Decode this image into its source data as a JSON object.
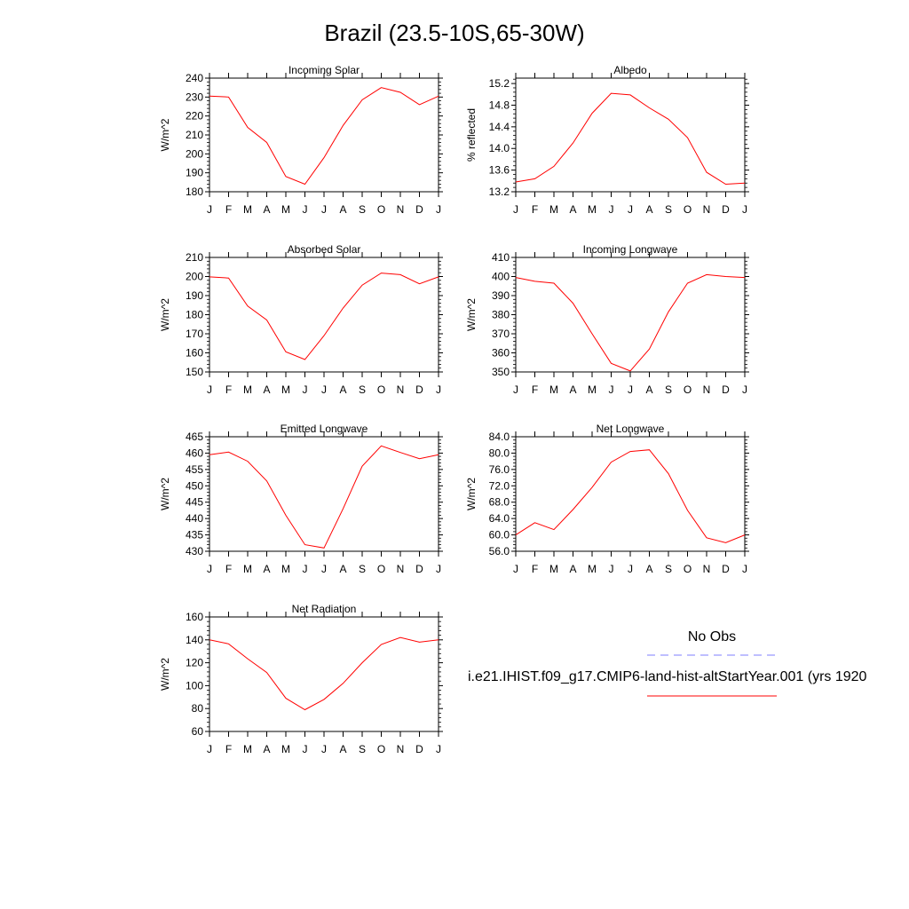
{
  "figure": {
    "title": "Brazil (23.5-10S,65-30W)"
  },
  "months": [
    "J",
    "F",
    "M",
    "A",
    "M",
    "J",
    "J",
    "A",
    "S",
    "O",
    "N",
    "D",
    "J"
  ],
  "legend": {
    "obs_label": "No Obs",
    "obs_color": "#7f7fff",
    "model_label": "i.e21.IHIST.f09_g17.CMIP6-land-hist-altStartYear.001 (yrs 1920",
    "model_color": "#ff0000"
  },
  "chart_data": [
    {
      "type": "line",
      "title": "Incoming Solar",
      "ylabel": "W/m^2",
      "ylim": [
        180,
        240
      ],
      "yticks": [
        "180",
        "190",
        "200",
        "210",
        "220",
        "230",
        "240"
      ],
      "tick_values": [
        180,
        190,
        200,
        210,
        220,
        230,
        240
      ],
      "categories": [
        "J",
        "F",
        "M",
        "A",
        "M",
        "J",
        "J",
        "A",
        "S",
        "O",
        "N",
        "D",
        "J"
      ],
      "series": [
        {
          "values": [
            230.5,
            230,
            214,
            206,
            188,
            184,
            198,
            215,
            228.5,
            235,
            232.5,
            226,
            230.5
          ]
        }
      ]
    },
    {
      "type": "line",
      "title": "Albedo",
      "ylabel": "% reflected",
      "ylim": [
        13.2,
        15.3
      ],
      "yticks": [
        "13.2",
        "13.6",
        "14.0",
        "14.4",
        "14.8",
        "15.2"
      ],
      "tick_values": [
        13.2,
        13.6,
        14.0,
        14.4,
        14.8,
        15.2
      ],
      "categories": [
        "J",
        "F",
        "M",
        "A",
        "M",
        "J",
        "J",
        "A",
        "S",
        "O",
        "N",
        "D",
        "J"
      ],
      "series": [
        {
          "values": [
            13.38,
            13.44,
            13.67,
            14.1,
            14.65,
            15.02,
            14.99,
            14.75,
            14.54,
            14.2,
            13.56,
            13.34,
            13.36
          ]
        }
      ]
    },
    {
      "type": "line",
      "title": "Absorbed Solar",
      "ylabel": "W/m^2",
      "ylim": [
        150,
        210
      ],
      "yticks": [
        "150",
        "160",
        "170",
        "180",
        "190",
        "200",
        "210"
      ],
      "tick_values": [
        150,
        160,
        170,
        180,
        190,
        200,
        210
      ],
      "categories": [
        "J",
        "F",
        "M",
        "A",
        "M",
        "J",
        "J",
        "A",
        "S",
        "O",
        "N",
        "D",
        "J"
      ],
      "series": [
        {
          "values": [
            199.8,
            199.2,
            184.5,
            177.2,
            160.5,
            156.5,
            169,
            183.5,
            195.5,
            201.8,
            201,
            196.2,
            199.8
          ]
        }
      ]
    },
    {
      "type": "line",
      "title": "Incoming Longwave",
      "ylabel": "W/m^2",
      "ylim": [
        350,
        410
      ],
      "yticks": [
        "350",
        "360",
        "370",
        "380",
        "390",
        "400",
        "410"
      ],
      "tick_values": [
        350,
        360,
        370,
        380,
        390,
        400,
        410
      ],
      "categories": [
        "J",
        "F",
        "M",
        "A",
        "M",
        "J",
        "J",
        "A",
        "S",
        "O",
        "N",
        "D",
        "J"
      ],
      "series": [
        {
          "values": [
            399.5,
            397.5,
            396.5,
            386,
            370,
            354.5,
            350.5,
            362,
            381.5,
            396.5,
            401,
            400,
            399.5
          ]
        }
      ]
    },
    {
      "type": "line",
      "title": "Emitted Longwave",
      "ylabel": "W/m^2",
      "ylim": [
        430,
        465
      ],
      "yticks": [
        "430",
        "435",
        "440",
        "445",
        "450",
        "455",
        "460",
        "465"
      ],
      "tick_values": [
        430,
        435,
        440,
        445,
        450,
        455,
        460,
        465
      ],
      "categories": [
        "J",
        "F",
        "M",
        "A",
        "M",
        "J",
        "J",
        "A",
        "S",
        "O",
        "N",
        "D",
        "J"
      ],
      "series": [
        {
          "values": [
            459.5,
            460.3,
            457.5,
            451.5,
            441,
            432,
            431,
            443,
            456,
            462.2,
            460.2,
            458.3,
            459.5
          ]
        }
      ]
    },
    {
      "type": "line",
      "title": "Net Longwave",
      "ylabel": "W/m^2",
      "ylim": [
        56,
        84
      ],
      "yticks": [
        "56.0",
        "60.0",
        "64.0",
        "68.0",
        "72.0",
        "76.0",
        "80.0",
        "84.0"
      ],
      "tick_values": [
        56,
        60,
        64,
        68,
        72,
        76,
        80,
        84
      ],
      "categories": [
        "J",
        "F",
        "M",
        "A",
        "M",
        "J",
        "J",
        "A",
        "S",
        "O",
        "N",
        "D",
        "J"
      ],
      "series": [
        {
          "values": [
            60,
            63,
            61.3,
            66.2,
            71.6,
            77.8,
            80.4,
            80.8,
            75,
            66,
            59.3,
            58.1,
            60
          ]
        }
      ]
    },
    {
      "type": "line",
      "title": "Net Radiation",
      "ylabel": "W/m^2",
      "ylim": [
        60,
        160
      ],
      "yticks": [
        "60",
        "80",
        "100",
        "120",
        "140",
        "160"
      ],
      "tick_values": [
        60,
        80,
        100,
        120,
        140,
        160
      ],
      "categories": [
        "J",
        "F",
        "M",
        "A",
        "M",
        "J",
        "J",
        "A",
        "S",
        "O",
        "N",
        "D",
        "J"
      ],
      "series": [
        {
          "values": [
            140,
            136.5,
            123.5,
            111.5,
            89,
            79,
            88,
            102,
            120,
            136,
            142,
            138,
            140
          ]
        }
      ]
    }
  ]
}
